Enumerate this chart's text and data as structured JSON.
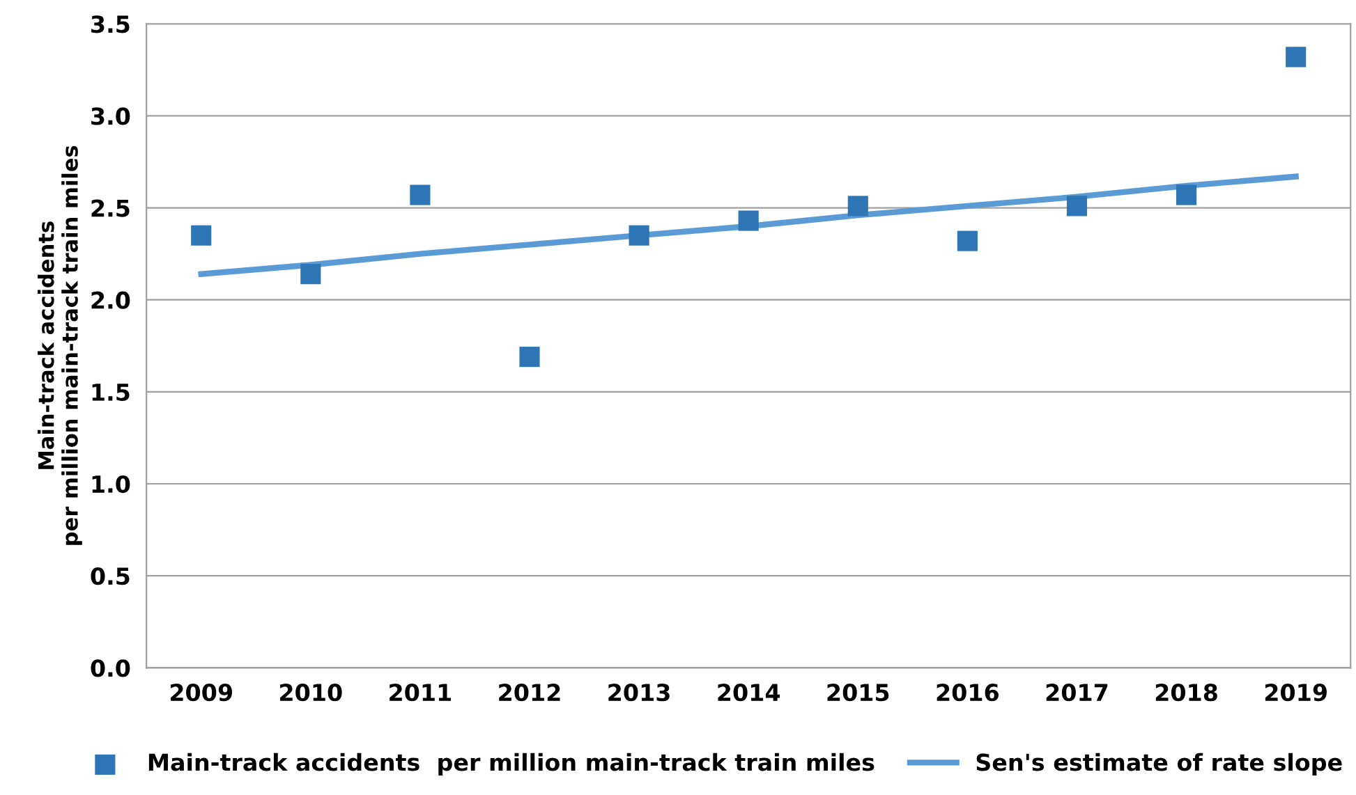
{
  "chart_data": {
    "type": "scatter",
    "ylabel": "Main-track accidents\nper million main-track train miles",
    "categories": [
      "2009",
      "2010",
      "2011",
      "2012",
      "2013",
      "2014",
      "2015",
      "2016",
      "2017",
      "2018",
      "2019"
    ],
    "series": [
      {
        "name": "Main-track accidents  per million main-track train miles",
        "color": "#2e75b6",
        "marker": "square",
        "values": [
          2.35,
          2.14,
          2.57,
          1.69,
          2.35,
          2.43,
          2.51,
          2.32,
          2.51,
          2.57,
          3.32
        ]
      },
      {
        "name": "Sen's estimate of rate slope",
        "type": "line",
        "color": "#5b9bd5",
        "marker": "none",
        "line_style": "solid",
        "values": [
          2.14,
          2.19,
          2.25,
          2.3,
          2.35,
          2.4,
          2.46,
          2.51,
          2.56,
          2.62,
          2.67
        ]
      }
    ],
    "ylim": [
      0,
      3.5
    ],
    "yticks": [
      {
        "value": 0,
        "label": "0.0"
      },
      {
        "value": 0.5,
        "label": "0.5"
      },
      {
        "value": 1,
        "label": "1.0"
      },
      {
        "value": 1.5,
        "label": "1.5"
      },
      {
        "value": 2,
        "label": "2.0"
      },
      {
        "value": 2.5,
        "label": "2.5"
      },
      {
        "value": 3,
        "label": "3.0"
      },
      {
        "value": 3.5,
        "label": "3.5"
      }
    ],
    "grid": "y",
    "legend": "bottom"
  }
}
